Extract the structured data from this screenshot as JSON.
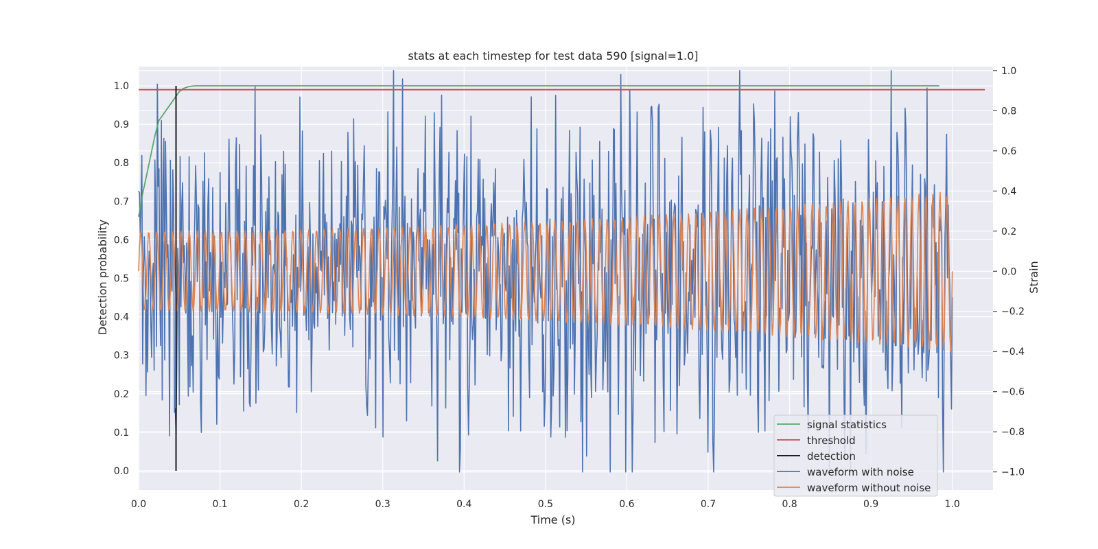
{
  "chart_data": {
    "type": "line",
    "title": "stats at each timestep for test data 590 [signal=1.0]",
    "xlabel": "Time (s)",
    "ylabel": "Detection probability",
    "y2label": "Strain",
    "xlim": [
      0.0,
      1.05
    ],
    "ylim": [
      -0.05,
      1.05
    ],
    "y2lim": [
      -1.09,
      1.02
    ],
    "xticks": [
      "0.0",
      "0.1",
      "0.2",
      "0.3",
      "0.4",
      "0.5",
      "0.6",
      "0.7",
      "0.8",
      "0.9",
      "1.0"
    ],
    "yticks": [
      "0.0",
      "0.1",
      "0.2",
      "0.3",
      "0.4",
      "0.5",
      "0.6",
      "0.7",
      "0.8",
      "0.9",
      "1.0"
    ],
    "y2ticks": [
      "−1.0",
      "−0.8",
      "−0.6",
      "−0.4",
      "−0.2",
      "0.0",
      "0.2",
      "0.4",
      "0.6",
      "0.8",
      "1.0"
    ],
    "grid": true,
    "legend_position": "lower-right",
    "series": [
      {
        "name": "signal statistics",
        "color": "#55a868",
        "axis": "left",
        "x": [
          0.0,
          0.005,
          0.01,
          0.015,
          0.02,
          0.025,
          0.03,
          0.035,
          0.04,
          0.045,
          0.05,
          0.055,
          0.06,
          0.065,
          0.07,
          0.08,
          0.09,
          0.1,
          0.2,
          0.3,
          0.4,
          0.5,
          0.6,
          0.7,
          0.8,
          0.9,
          0.984
        ],
        "y": [
          0.66,
          0.72,
          0.77,
          0.82,
          0.87,
          0.91,
          0.925,
          0.94,
          0.955,
          0.97,
          0.985,
          0.993,
          0.997,
          0.999,
          1.0,
          1.0,
          1.0,
          1.0,
          1.0,
          1.0,
          1.0,
          1.0,
          1.0,
          1.0,
          1.0,
          1.0,
          1.0
        ]
      },
      {
        "name": "threshold",
        "color": "#c44e52",
        "axis": "left",
        "x": [
          0.0,
          1.04
        ],
        "y": [
          0.99,
          0.99
        ]
      },
      {
        "name": "detection",
        "color": "#000000",
        "axis": "left",
        "x": [
          0.046,
          0.046
        ],
        "y": [
          0.0,
          1.0
        ]
      },
      {
        "name": "waveform with noise",
        "color": "#4c72b0",
        "axis": "right",
        "samples": 1000,
        "x_range": [
          0.0,
          1.0
        ],
        "y_range": [
          -1.0,
          1.0
        ]
      },
      {
        "name": "waveform without noise",
        "color": "#dd8452",
        "axis": "right",
        "samples": 1000,
        "x_range": [
          0.0,
          1.0
        ],
        "cycles": 100,
        "amplitude_start": 0.2,
        "amplitude_end": 0.4
      }
    ]
  },
  "legend": [
    {
      "label": "signal statistics",
      "color": "#55a868"
    },
    {
      "label": "threshold",
      "color": "#c44e52"
    },
    {
      "label": "detection",
      "color": "#000000"
    },
    {
      "label": "waveform with noise",
      "color": "#4c72b0"
    },
    {
      "label": "waveform without noise",
      "color": "#dd8452"
    }
  ]
}
